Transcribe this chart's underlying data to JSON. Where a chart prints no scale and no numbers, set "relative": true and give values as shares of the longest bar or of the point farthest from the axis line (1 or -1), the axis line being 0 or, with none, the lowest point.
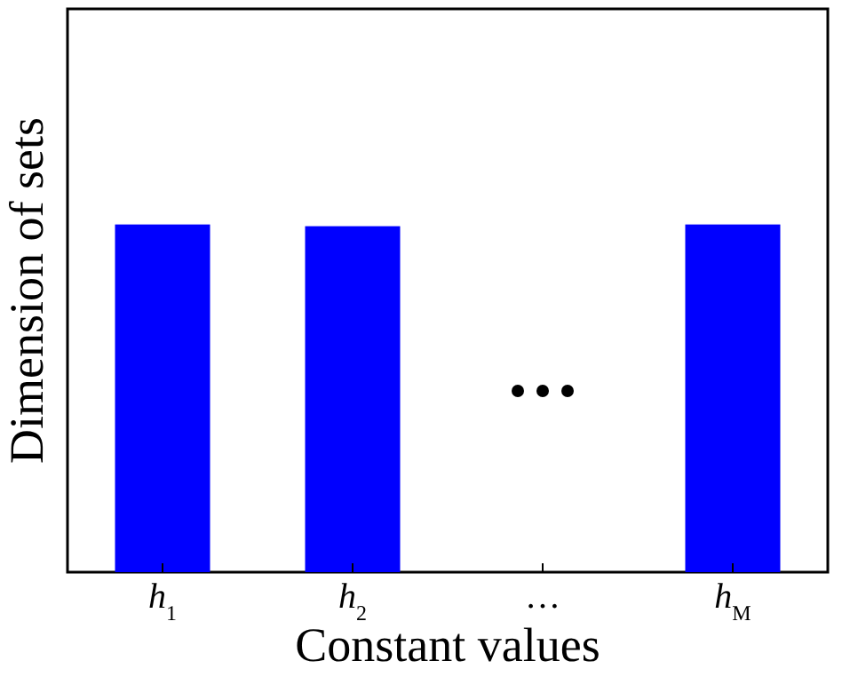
{
  "chart_data": {
    "type": "bar",
    "xlabel": "Constant values",
    "ylabel": "Dimension of sets",
    "relative": true,
    "categories": [
      "h$_{1}$",
      "h$_{2}$",
      "…",
      "h$_{M}$"
    ],
    "values": [
      1,
      0.995,
      null,
      1
    ],
    "color": "#0000ff"
  }
}
